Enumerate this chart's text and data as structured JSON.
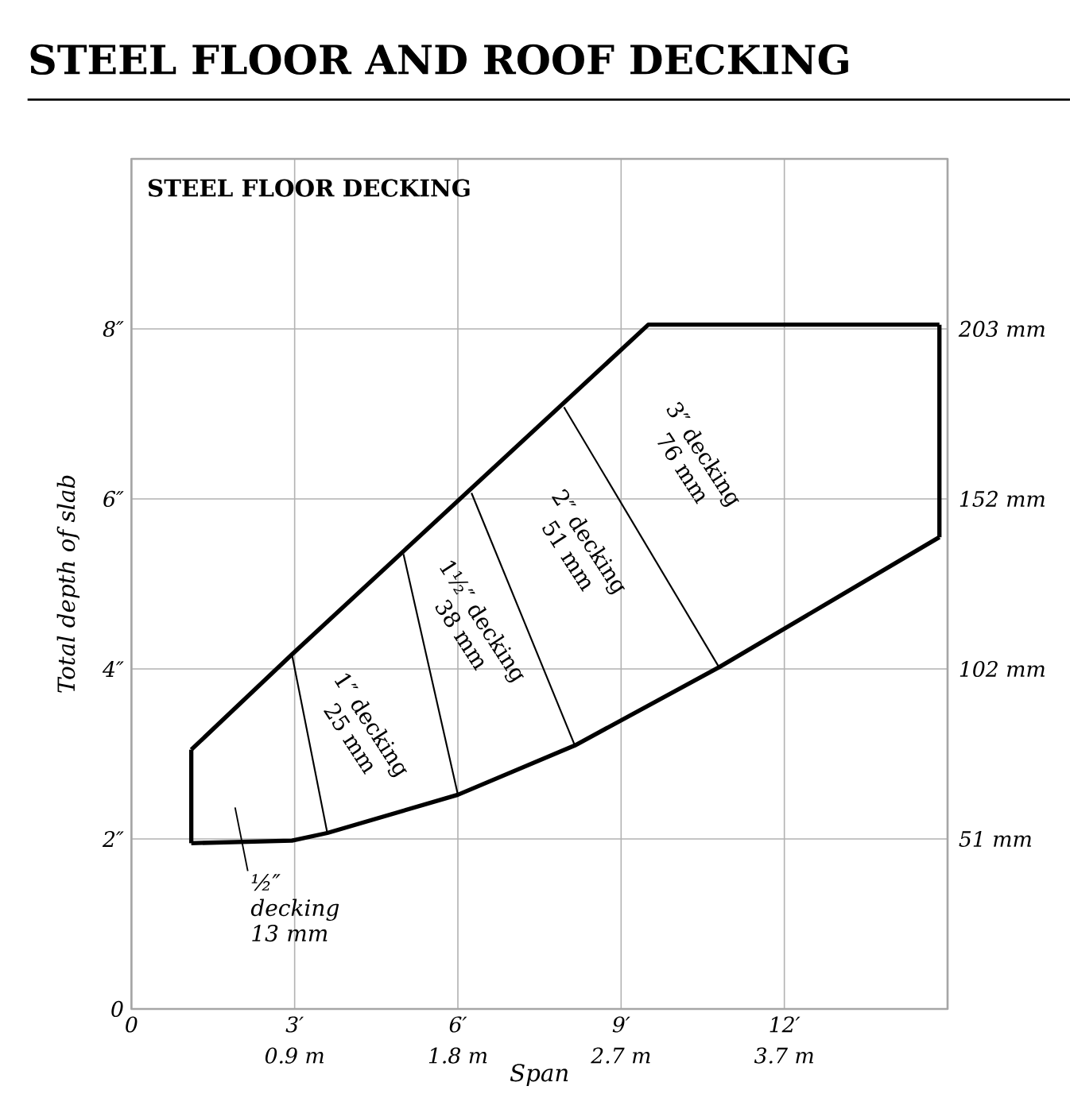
{
  "chart_data": {
    "type": "line",
    "title": "STEEL FLOOR AND ROOF DECKING",
    "subtitle": "STEEL FLOOR DECKING",
    "xlabel": "Span",
    "ylabel": "Total depth of slab",
    "xlim": [
      0,
      15
    ],
    "ylim": [
      0,
      10
    ],
    "xticks": [
      0,
      {
        "value": 3,
        "label": "3′"
      },
      {
        "value": 6,
        "label": "6′"
      },
      {
        "value": 9,
        "label": "9′"
      },
      {
        "value": 12,
        "label": "12′"
      }
    ],
    "yticks": [
      0,
      {
        "value": 2,
        "label": "2″"
      },
      {
        "value": 4,
        "label": "4″"
      },
      {
        "value": 6,
        "label": "6″"
      },
      {
        "value": 8,
        "label": "8″"
      }
    ],
    "x2lim": [
      0,
      4.572
    ],
    "x2ticks": [
      {
        "value": 0.9144,
        "label": "0.9 m"
      },
      {
        "value": 1.8288,
        "label": "1.8 m"
      },
      {
        "value": 2.7432,
        "label": "2.7 m"
      },
      {
        "value": 3.6576,
        "label": "3.7 m"
      }
    ],
    "y2lim": [
      0,
      254
    ],
    "y2ticks": [
      {
        "value": 50.8,
        "label": "51 mm"
      },
      {
        "value": 101.6,
        "label": "102 mm"
      },
      {
        "value": 152.4,
        "label": "152 mm"
      },
      {
        "value": 203.2,
        "label": "203 mm"
      }
    ],
    "grid": true,
    "marker": "none",
    "line_style": "solid",
    "series": [
      {
        "color": "#000000",
        "x": [
          1.1,
          1.1
        ],
        "values": [
          1.95,
          3.05
        ]
      },
      {
        "color": "#000000",
        "x": [
          1.1,
          2.95,
          9.5,
          14.85
        ],
        "values": [
          3.05,
          4.17,
          8.05,
          8.05
        ]
      },
      {
        "color": "#000000",
        "x": [
          14.85,
          14.85
        ],
        "values": [
          8.05,
          5.55
        ]
      },
      {
        "color": "#000000",
        "x": [
          1.1,
          2.95,
          3.6,
          6.0,
          8.15,
          10.8,
          14.85
        ],
        "values": [
          1.95,
          1.98,
          2.07,
          2.52,
          3.1,
          4.02,
          5.55
        ]
      },
      {
        "color": "#000000",
        "x": [
          2.95,
          3.6
        ],
        "values": [
          4.17,
          2.07
        ]
      },
      {
        "color": "#000000",
        "x": [
          5.0,
          6.0
        ],
        "values": [
          5.35,
          2.52
        ]
      },
      {
        "color": "#000000",
        "x": [
          6.25,
          8.15
        ],
        "values": [
          6.07,
          3.1
        ]
      },
      {
        "color": "#000000",
        "x": [
          7.95,
          10.8
        ],
        "values": [
          7.08,
          4.02
        ]
      }
    ],
    "annotations": [
      "½″ decking 13 mm",
      "1″ decking 25 mm",
      "1½″ decking 38 mm",
      "2″ decking 51 mm",
      "3″ decking 76 mm"
    ]
  }
}
